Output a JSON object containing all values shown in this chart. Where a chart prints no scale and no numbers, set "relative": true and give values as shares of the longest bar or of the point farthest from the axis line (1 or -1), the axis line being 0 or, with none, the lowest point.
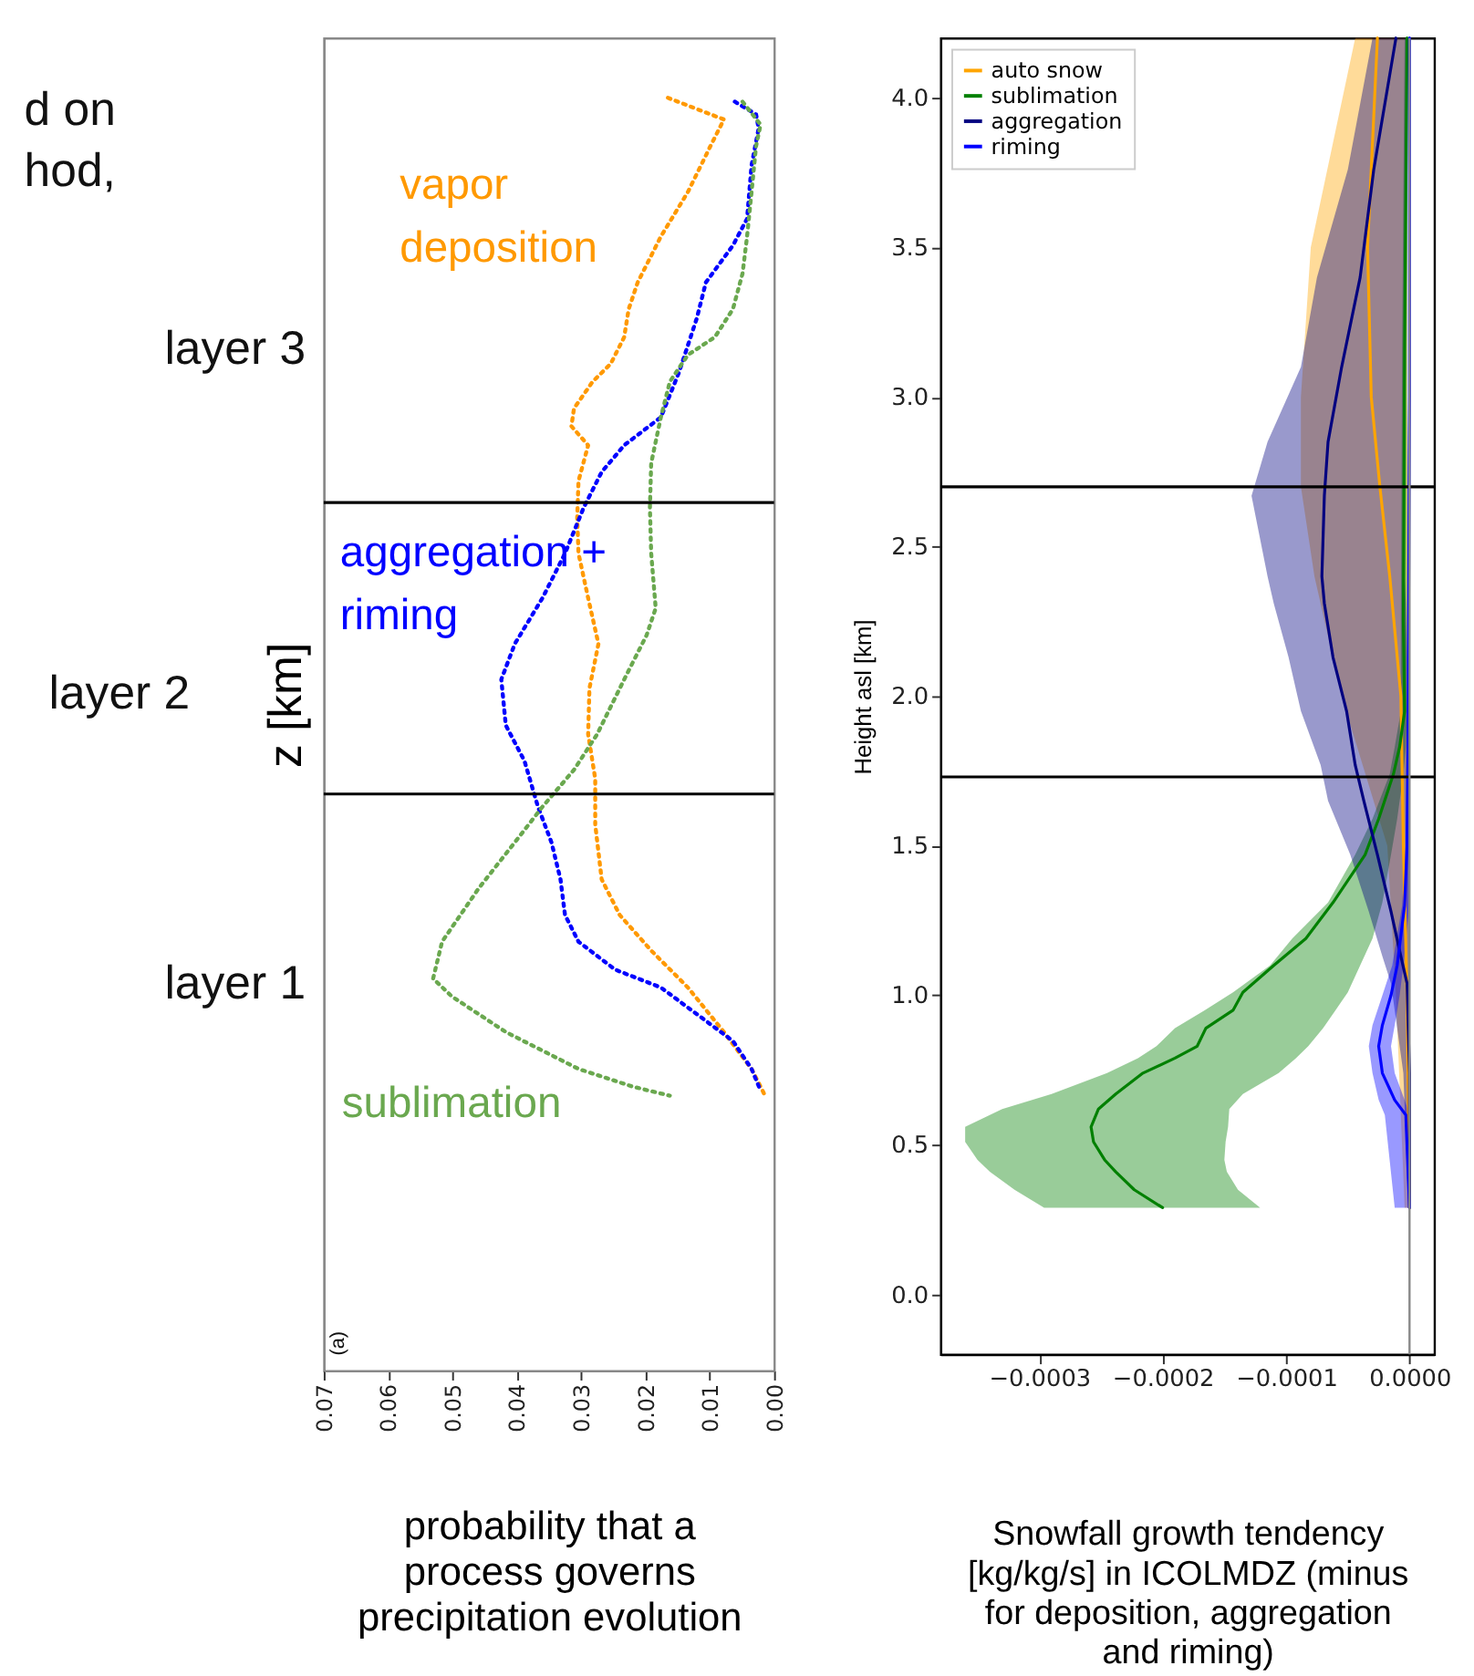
{
  "chart_data": [
    {
      "type": "line",
      "relative": true,
      "xlabel": "probability that a process governs precipitation evolution",
      "ylabel": "z [km]",
      "xlim": [
        0.07,
        0
      ],
      "xticks": [
        0.07,
        0.06,
        0.05,
        0.04,
        0.03,
        0.02,
        0.01,
        {
          "value": 0,
          "label": "0.00"
        }
      ],
      "tick_labels": "x",
      "legend": false,
      "grid": false,
      "line_style": "dotted",
      "ref_lines": [
        {
          "axis": "y",
          "value": 0.682,
          "color": "#000000"
        },
        {
          "axis": "y",
          "value": 0.453,
          "color": "#000000"
        }
      ],
      "annotations": [
        "d on",
        "hod,",
        "layer 3",
        "layer 2",
        "layer 1",
        "(a)"
      ],
      "series": [
        {
          "name": "vapor deposition",
          "color": "#ff9900",
          "values": [
            1.0,
            0.983,
            0.962,
            0.926,
            0.891,
            0.855,
            0.834,
            0.812,
            0.791,
            0.777,
            0.756,
            0.742,
            0.727,
            0.699,
            0.67,
            0.642,
            0.607,
            0.571,
            0.536,
            0.5,
            0.465,
            0.429,
            0.386,
            0.358,
            0.33,
            0.301,
            0.266,
            0.237,
            0.216
          ],
          "x": [
            0.0165,
            0.0078,
            0.0099,
            0.0134,
            0.0176,
            0.0212,
            0.0226,
            0.0233,
            0.0254,
            0.0282,
            0.0311,
            0.0315,
            0.0289,
            0.0304,
            0.0306,
            0.0304,
            0.0289,
            0.0273,
            0.0287,
            0.0289,
            0.0278,
            0.0278,
            0.0268,
            0.024,
            0.0191,
            0.0134,
            0.0078,
            0.0035,
            0.0014
          ]
        },
        {
          "name": "aggregation + riming",
          "color": "#0000ff",
          "values": [
            0.997,
            0.987,
            0.976,
            0.947,
            0.905,
            0.884,
            0.855,
            0.827,
            0.784,
            0.749,
            0.727,
            0.706,
            0.678,
            0.642,
            0.607,
            0.571,
            0.543,
            0.507,
            0.479,
            0.443,
            0.415,
            0.386,
            0.358,
            0.337,
            0.315,
            0.301,
            0.28,
            0.259,
            0.237,
            0.22
          ],
          "x": [
            0.0061,
            0.0028,
            0.0024,
            0.0035,
            0.0042,
            0.0064,
            0.0106,
            0.012,
            0.0148,
            0.0176,
            0.0233,
            0.0268,
            0.0296,
            0.0325,
            0.036,
            0.0403,
            0.0424,
            0.0417,
            0.0388,
            0.0367,
            0.0346,
            0.0332,
            0.0325,
            0.0304,
            0.0247,
            0.0176,
            0.012,
            0.0064,
            0.0035,
            0.0021
          ]
        },
        {
          "name": "sublimation",
          "color": "#6aa84f",
          "values": [
            0.997,
            0.979,
            0.962,
            0.926,
            0.891,
            0.862,
            0.834,
            0.812,
            0.798,
            0.777,
            0.749,
            0.713,
            0.678,
            0.642,
            0.599,
            0.578,
            0.543,
            0.5,
            0.472,
            0.443,
            0.415,
            0.379,
            0.337,
            0.308,
            0.294,
            0.266,
            0.237,
            0.223,
            0.216
          ],
          "x": [
            0.0049,
            0.0021,
            0.0028,
            0.0035,
            0.0042,
            0.0049,
            0.0064,
            0.0092,
            0.0134,
            0.0162,
            0.0176,
            0.0191,
            0.0193,
            0.0191,
            0.0184,
            0.0198,
            0.0233,
            0.0275,
            0.0311,
            0.036,
            0.0403,
            0.0459,
            0.0516,
            0.053,
            0.0501,
            0.0417,
            0.0304,
            0.0219,
            0.0162
          ]
        }
      ]
    },
    {
      "type": "line",
      "orientation": "horizontal",
      "xlabel": "Snowfall growth tendency [kg/kg/s] in ICOLMDZ (minus for deposition, aggregation and riming)",
      "ylabel": "Height asl [km]",
      "xlim": [
        -0.00038,
        2e-05
      ],
      "xticks": [
        {
          "value": -0.0003,
          "label": "−0.0003"
        },
        {
          "value": -0.0002,
          "label": "−0.0002"
        },
        {
          "value": -0.0001,
          "label": "−0.0001"
        },
        {
          "value": 0,
          "label": "0.0000"
        }
      ],
      "ylim": [
        -0.2,
        4.2
      ],
      "yticks": [
        {
          "value": 0,
          "label": "0.0"
        },
        0.5,
        {
          "value": 1,
          "label": "1.0"
        },
        1.5,
        {
          "value": 2,
          "label": "2.0"
        },
        2.5,
        {
          "value": 3,
          "label": "3.0"
        },
        3.5,
        {
          "value": 4,
          "label": "4.0"
        }
      ],
      "legend": "top left",
      "grid": false,
      "line_style": "solid",
      "ref_lines": [
        {
          "axis": "y",
          "value": 2.7,
          "color": "#000000"
        },
        {
          "axis": "y",
          "value": 1.73,
          "color": "#000000"
        },
        {
          "axis": "x",
          "value": 0,
          "color": "#888888"
        }
      ],
      "series": [
        {
          "name": "auto snow",
          "color": "#ffa500",
          "x": [
            4.2,
            3.5,
            3.0,
            2.7,
            2.4,
            2.0,
            1.5,
            1.0,
            0.29
          ],
          "values": [
            -2.6e-05,
            -3.4e-05,
            -3.1e-05,
            -2.4e-05,
            -1.6e-05,
            -7e-06,
            -5e-06,
            -2e-06,
            0
          ],
          "lower": [
            -4.4e-05,
            -8e-05,
            -8.8e-05,
            -8.8e-05,
            -7.7e-05,
            -5.5e-05,
            -1.8e-05,
            -1.1e-05,
            -4e-06
          ],
          "upper": [
            -3e-06,
            -2e-06,
            -2e-06,
            -1e-06,
            -1e-06,
            0,
            0,
            0,
            0
          ]
        },
        {
          "name": "sublimation",
          "color": "#008000",
          "x": [
            0.29,
            0.35,
            0.41,
            0.45,
            0.51,
            0.56,
            0.62,
            0.67,
            0.74,
            0.79,
            0.83,
            0.89,
            0.95,
            1.01,
            1.1,
            1.19,
            1.31,
            1.47,
            1.59,
            1.74,
            1.83,
            1.95,
            2.25,
            3.16,
            4.2
          ],
          "values": [
            -0.0002,
            -0.000223,
            -0.000238,
            -0.000247,
            -0.000256,
            -0.000258,
            -0.000252,
            -0.000238,
            -0.000216,
            -0.00019,
            -0.000172,
            -0.000165,
            -0.000143,
            -0.000135,
            -0.00011,
            -8.4e-05,
            -6.2e-05,
            -3.6e-05,
            -2.5e-05,
            -1.3e-05,
            -8e-06,
            -4e-06,
            -5e-06,
            -4e-06,
            -2e-06
          ],
          "lower": [
            -0.000296,
            -0.00032,
            -0.00034,
            -0.00035,
            -0.00036,
            -0.00036,
            -0.00033,
            -0.00029,
            -0.000245,
            -0.00022,
            -0.000205,
            -0.00019,
            -0.000166,
            -0.000143,
            -0.000113,
            -9.5e-05,
            -6.6e-05,
            -4.4e-05,
            -3e-05,
            -1.6e-05,
            -1.2e-05,
            -7e-06,
            -7e-06,
            -6e-06,
            -4e-06
          ],
          "upper": [
            -0.000121,
            -0.000139,
            -0.000148,
            -0.00015,
            -0.000149,
            -0.000147,
            -0.000146,
            -0.000135,
            -0.000106,
            -9.2e-05,
            -8.2e-05,
            -7e-05,
            -6e-05,
            -5e-05,
            -4e-05,
            -3e-05,
            -2.2e-05,
            -1.5e-05,
            -1e-05,
            -5e-06,
            -3e-06,
            -2e-06,
            -2e-06,
            -2e-06,
            -1e-06
          ]
        },
        {
          "name": "aggregation",
          "color": "#000080",
          "x": [
            4.2,
            3.76,
            3.4,
            3.1,
            2.85,
            2.67,
            2.4,
            2.31,
            2.13,
            1.95,
            1.77,
            1.65,
            1.47,
            1.28,
            1.13,
            1.04,
            0.74,
            0.29
          ],
          "values": [
            -1.1e-05,
            -2.9e-05,
            -4e-05,
            -5.5e-05,
            -6.6e-05,
            -6.9e-05,
            -7.1e-05,
            -6.9e-05,
            -6.2e-05,
            -5.1e-05,
            -4.4e-05,
            -3.7e-05,
            -2.6e-05,
            -1.5e-05,
            -7e-06,
            -2e-06,
            0,
            0
          ],
          "lower": [
            -3e-05,
            -5e-05,
            -7.5e-05,
            -8.8e-05,
            -0.000115,
            -0.000128,
            -0.000115,
            -0.00011,
            -9.8e-05,
            -8.8e-05,
            -7.2e-05,
            -6.6e-05,
            -4.8e-05,
            -3.3e-05,
            -2.2e-05,
            -1.5e-05,
            -5e-06,
            -1e-06
          ],
          "upper": [
            -2e-06,
            -2e-06,
            -3e-06,
            -3e-06,
            -4e-06,
            -4e-06,
            -4e-06,
            -3e-06,
            -2e-06,
            -2e-06,
            -1e-06,
            -1e-06,
            0,
            0,
            0,
            0,
            0,
            0
          ]
        },
        {
          "name": "riming",
          "color": "#0000ff",
          "x": [
            4.2,
            3.0,
            2.0,
            1.5,
            1.3,
            1.1,
            1.0,
            0.9,
            0.83,
            0.74,
            0.65,
            0.6,
            0.29
          ],
          "values": [
            0,
            0,
            -1e-06,
            -2e-06,
            -4e-06,
            -1e-05,
            -1.5e-05,
            -2.2e-05,
            -2.5e-05,
            -2.2e-05,
            -1.2e-05,
            -3e-06,
            0
          ],
          "lower": [
            -1e-06,
            -1e-06,
            -2e-06,
            -3e-06,
            -6e-06,
            -1.4e-05,
            -2.2e-05,
            -3e-05,
            -3.3e-05,
            -3e-05,
            -2.5e-05,
            -2e-05,
            -1.2e-05
          ],
          "upper": [
            0,
            0,
            0,
            0,
            0,
            -5e-06,
            -8e-06,
            -1.2e-05,
            -1.5e-05,
            -1.2e-05,
            -4e-06,
            0,
            0
          ]
        }
      ]
    }
  ]
}
